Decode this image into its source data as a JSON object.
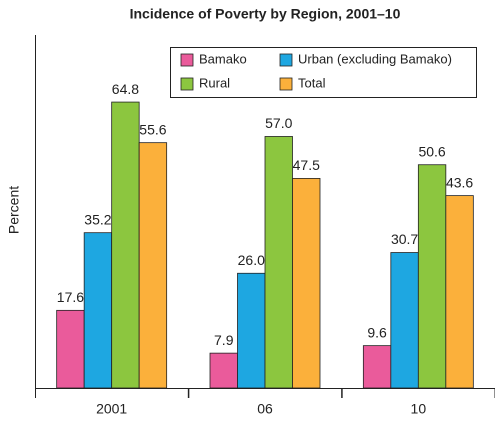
{
  "chart_data": {
    "type": "bar",
    "title": "Incidence of Poverty by Region, 2001–10",
    "y_label": "Percent",
    "categories": [
      "2001",
      "06",
      "10"
    ],
    "series": [
      {
        "name": "Bamako",
        "color": "#ea5b9b",
        "values": [
          17.6,
          7.9,
          9.6
        ],
        "value_labels": [
          "17.6",
          "7.9",
          "9.6"
        ]
      },
      {
        "name": "Urban (excluding Bamako)",
        "color": "#1ea7e1",
        "values": [
          35.2,
          26.0,
          30.7
        ],
        "value_labels": [
          "35.2",
          "26.0",
          "30.7"
        ]
      },
      {
        "name": "Rural",
        "color": "#8cc63f",
        "values": [
          64.8,
          57.0,
          50.6
        ],
        "value_labels": [
          "64.8",
          "57.0",
          "50.6"
        ]
      },
      {
        "name": "Total",
        "color": "#fbb03b",
        "values": [
          55.6,
          47.5,
          43.6
        ],
        "value_labels": [
          "55.6",
          "47.5",
          "43.6"
        ]
      }
    ],
    "ylim": [
      0,
      80
    ]
  }
}
